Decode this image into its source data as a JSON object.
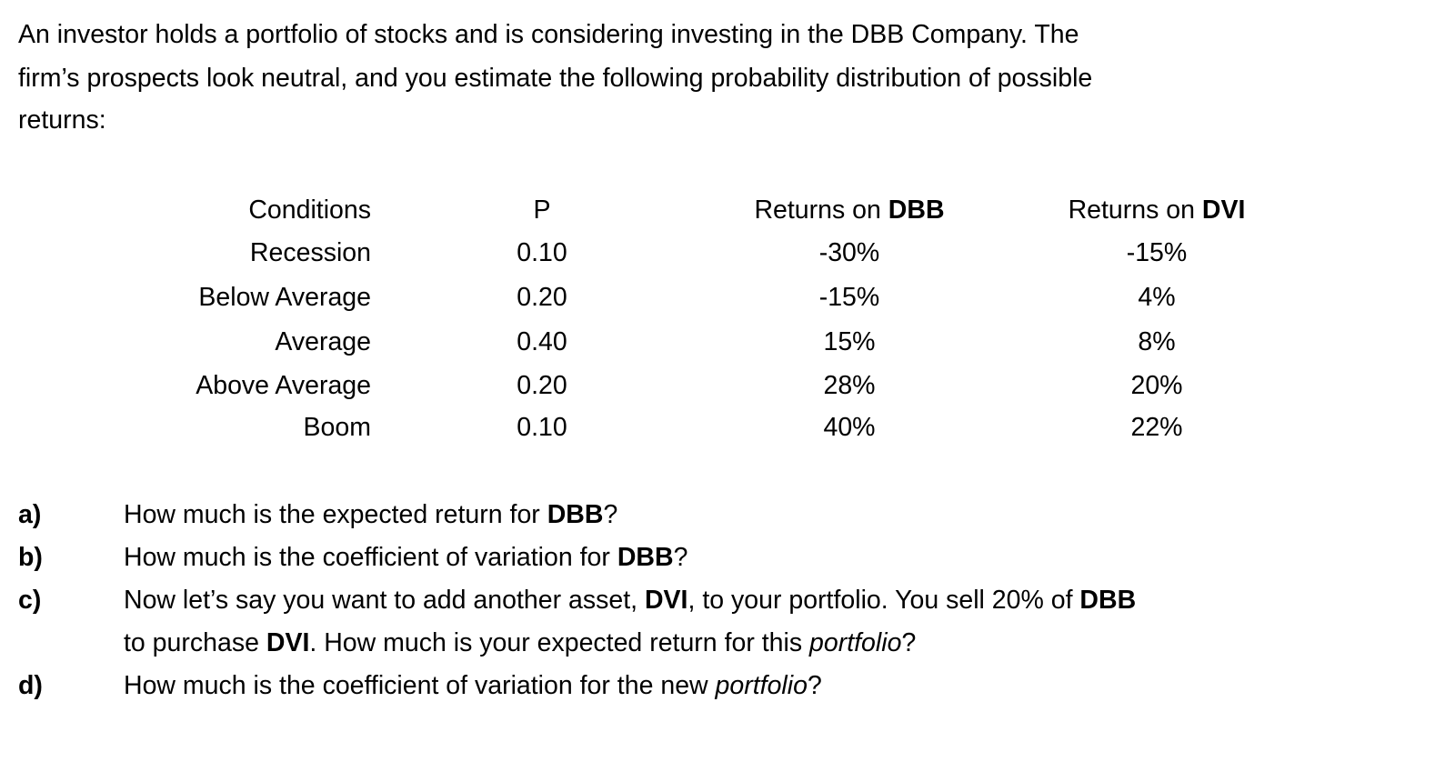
{
  "intro": {
    "line1": "An investor holds a portfolio of stocks and is considering investing in the DBB Company.  The",
    "line2": "firm’s prospects look neutral, and you estimate the following probability distribution of possible",
    "line3": "returns:"
  },
  "table": {
    "headers": {
      "conditions": "Conditions",
      "p": "P",
      "dbb_prefix": "Returns on ",
      "dbb_bold": "DBB",
      "dvi_prefix": "Returns on ",
      "dvi_bold": "DVI"
    },
    "rows": [
      {
        "condition": "Recession",
        "p": "0.10",
        "dbb": "-30%",
        "dvi": "-15%"
      },
      {
        "condition": "Below Average",
        "p": "0.20",
        "dbb": "-15%",
        "dvi": "4%"
      },
      {
        "condition": "Average",
        "p": "0.40",
        "dbb": "15%",
        "dvi": "8%"
      },
      {
        "condition": "Above Average",
        "p": "0.20",
        "dbb": "28%",
        "dvi": "20%"
      },
      {
        "condition": "Boom",
        "p": "0.10",
        "dbb": "40%",
        "dvi": "22%"
      }
    ]
  },
  "questions": {
    "a": {
      "label": "a)",
      "t1": "How much is the expected return for ",
      "b1": "DBB",
      "t2": "?"
    },
    "b": {
      "label": "b)",
      "t1": "How much is the coefficient of variation for ",
      "b1": "DBB",
      "t2": "?"
    },
    "c": {
      "label": "c)",
      "t1": "Now let’s say you want to add another asset, ",
      "b1": "DVI",
      "t2": ", to your portfolio.  You sell 20% of ",
      "b2": "DBB",
      "t3": "to purchase ",
      "b3": "DVI",
      "t4": ".  How much is your expected return for this ",
      "i1": "portfolio",
      "t5": "?"
    },
    "d": {
      "label": "d)",
      "t1": "How much is the coefficient of variation for the new ",
      "i1": "portfolio",
      "t2": "?"
    }
  }
}
